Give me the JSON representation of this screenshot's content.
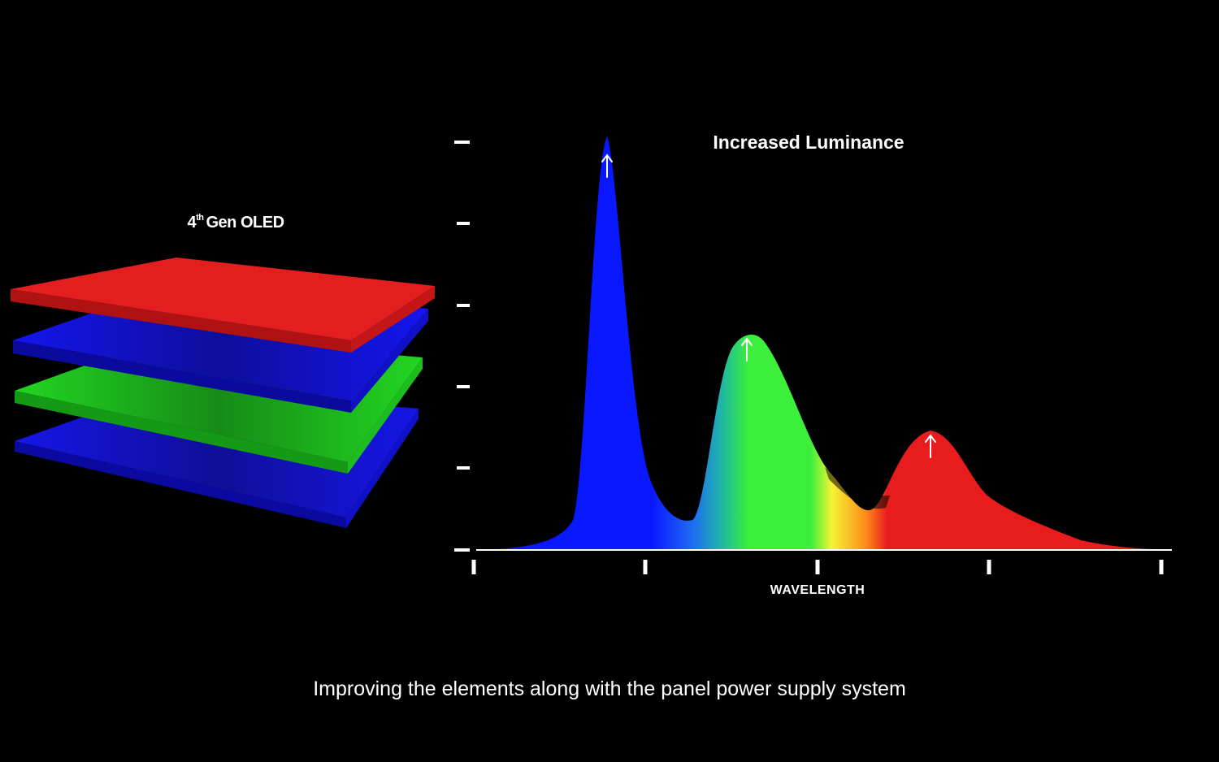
{
  "left_panel": {
    "title_prefix": "4",
    "title_superscript": "th",
    "title_suffix": "Gen OLED",
    "layers": [
      {
        "name": "red",
        "color": "#e41b1b"
      },
      {
        "name": "blue",
        "color": "#1a1aff"
      },
      {
        "name": "green",
        "color": "#27e627"
      },
      {
        "name": "blue",
        "color": "#1a1aff"
      }
    ]
  },
  "graph": {
    "title": "Increased Luminance",
    "x_axis_label": "WAVELENGTH",
    "y_tick_count": 6,
    "x_tick_count": 5,
    "peaks": [
      {
        "name": "blue",
        "color": "#0a18ff",
        "direction": "up"
      },
      {
        "name": "green",
        "color": "#3bef3b",
        "direction": "up"
      },
      {
        "name": "red",
        "color": "#e81c1c",
        "direction": "up"
      }
    ]
  },
  "caption": "Improving the elements along with the panel power supply system"
}
